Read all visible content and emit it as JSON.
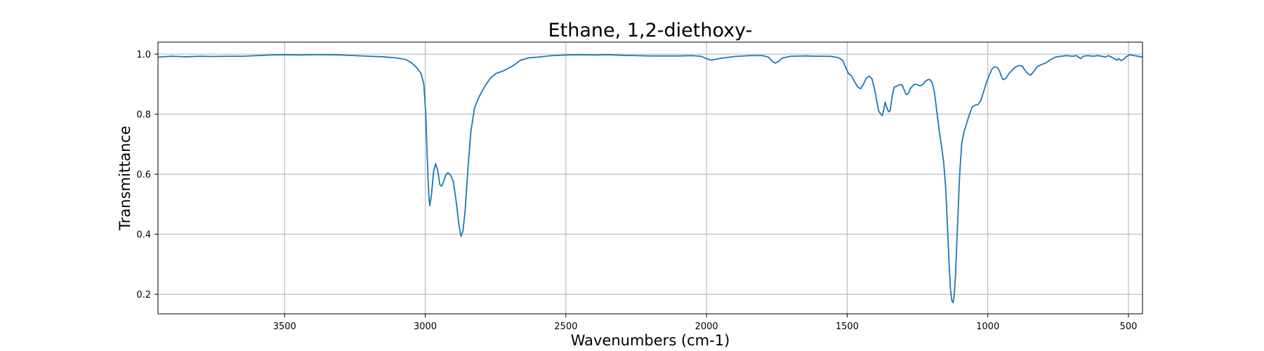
{
  "chart_data": {
    "type": "line",
    "title": "Ethane, 1,2-diethoxy-",
    "xlabel": "Wavenumbers (cm-1)",
    "ylabel": "Transmittance",
    "xlim": [
      3950,
      450
    ],
    "ylim": [
      0.135,
      1.04
    ],
    "x_reversed": true,
    "grid": true,
    "x_ticks": [
      3500,
      3000,
      2500,
      2000,
      1500,
      1000,
      500
    ],
    "y_ticks": [
      0.2,
      0.4,
      0.6,
      0.8,
      1.0
    ],
    "x_tick_labels": [
      "3500",
      "3000",
      "2500",
      "2000",
      "1500",
      "1000",
      "500"
    ],
    "y_tick_labels": [
      "0.2",
      "0.4",
      "0.6",
      "0.8",
      "1.0"
    ],
    "series": [
      {
        "color": "#1f77b4",
        "points": [
          [
            3950,
            0.99
          ],
          [
            3900,
            0.993
          ],
          [
            3850,
            0.991
          ],
          [
            3800,
            0.993
          ],
          [
            3750,
            0.992
          ],
          [
            3700,
            0.993
          ],
          [
            3650,
            0.993
          ],
          [
            3600,
            0.995
          ],
          [
            3550,
            0.997
          ],
          [
            3500,
            0.998
          ],
          [
            3450,
            0.997
          ],
          [
            3400,
            0.998
          ],
          [
            3350,
            0.998
          ],
          [
            3300,
            0.997
          ],
          [
            3250,
            0.995
          ],
          [
            3200,
            0.993
          ],
          [
            3150,
            0.991
          ],
          [
            3100,
            0.987
          ],
          [
            3070,
            0.982
          ],
          [
            3050,
            0.972
          ],
          [
            3030,
            0.955
          ],
          [
            3015,
            0.935
          ],
          [
            3005,
            0.9
          ],
          [
            2998,
            0.8
          ],
          [
            2993,
            0.66
          ],
          [
            2988,
            0.54
          ],
          [
            2984,
            0.495
          ],
          [
            2978,
            0.53
          ],
          [
            2970,
            0.61
          ],
          [
            2963,
            0.635
          ],
          [
            2955,
            0.61
          ],
          [
            2948,
            0.565
          ],
          [
            2942,
            0.56
          ],
          [
            2935,
            0.575
          ],
          [
            2928,
            0.595
          ],
          [
            2920,
            0.605
          ],
          [
            2910,
            0.598
          ],
          [
            2900,
            0.575
          ],
          [
            2890,
            0.51
          ],
          [
            2880,
            0.43
          ],
          [
            2873,
            0.393
          ],
          [
            2866,
            0.41
          ],
          [
            2858,
            0.48
          ],
          [
            2848,
            0.62
          ],
          [
            2838,
            0.74
          ],
          [
            2825,
            0.82
          ],
          [
            2810,
            0.855
          ],
          [
            2790,
            0.89
          ],
          [
            2770,
            0.918
          ],
          [
            2750,
            0.935
          ],
          [
            2720,
            0.945
          ],
          [
            2690,
            0.96
          ],
          [
            2660,
            0.98
          ],
          [
            2630,
            0.988
          ],
          [
            2600,
            0.99
          ],
          [
            2550,
            0.995
          ],
          [
            2500,
            0.997
          ],
          [
            2450,
            0.998
          ],
          [
            2400,
            0.997
          ],
          [
            2350,
            0.998
          ],
          [
            2300,
            0.996
          ],
          [
            2250,
            0.995
          ],
          [
            2200,
            0.994
          ],
          [
            2150,
            0.994
          ],
          [
            2100,
            0.994
          ],
          [
            2050,
            0.995
          ],
          [
            2020,
            0.993
          ],
          [
            2000,
            0.985
          ],
          [
            1985,
            0.98
          ],
          [
            1970,
            0.982
          ],
          [
            1950,
            0.986
          ],
          [
            1900,
            0.992
          ],
          [
            1850,
            0.995
          ],
          [
            1800,
            0.995
          ],
          [
            1780,
            0.99
          ],
          [
            1765,
            0.975
          ],
          [
            1755,
            0.97
          ],
          [
            1745,
            0.975
          ],
          [
            1730,
            0.987
          ],
          [
            1700,
            0.993
          ],
          [
            1650,
            0.994
          ],
          [
            1600,
            0.993
          ],
          [
            1560,
            0.993
          ],
          [
            1530,
            0.988
          ],
          [
            1515,
            0.978
          ],
          [
            1505,
            0.955
          ],
          [
            1495,
            0.935
          ],
          [
            1485,
            0.928
          ],
          [
            1475,
            0.91
          ],
          [
            1462,
            0.89
          ],
          [
            1452,
            0.885
          ],
          [
            1442,
            0.9
          ],
          [
            1432,
            0.92
          ],
          [
            1422,
            0.927
          ],
          [
            1412,
            0.918
          ],
          [
            1403,
            0.885
          ],
          [
            1395,
            0.845
          ],
          [
            1388,
            0.81
          ],
          [
            1380,
            0.8
          ],
          [
            1375,
            0.795
          ],
          [
            1370,
            0.815
          ],
          [
            1365,
            0.84
          ],
          [
            1360,
            0.825
          ],
          [
            1353,
            0.808
          ],
          [
            1347,
            0.812
          ],
          [
            1340,
            0.86
          ],
          [
            1333,
            0.89
          ],
          [
            1325,
            0.893
          ],
          [
            1315,
            0.898
          ],
          [
            1305,
            0.898
          ],
          [
            1297,
            0.88
          ],
          [
            1290,
            0.865
          ],
          [
            1283,
            0.868
          ],
          [
            1275,
            0.885
          ],
          [
            1265,
            0.897
          ],
          [
            1255,
            0.9
          ],
          [
            1245,
            0.895
          ],
          [
            1238,
            0.895
          ],
          [
            1230,
            0.9
          ],
          [
            1222,
            0.91
          ],
          [
            1213,
            0.915
          ],
          [
            1205,
            0.915
          ],
          [
            1198,
            0.905
          ],
          [
            1190,
            0.875
          ],
          [
            1180,
            0.8
          ],
          [
            1172,
            0.74
          ],
          [
            1164,
            0.69
          ],
          [
            1157,
            0.64
          ],
          [
            1150,
            0.56
          ],
          [
            1144,
            0.44
          ],
          [
            1138,
            0.31
          ],
          [
            1133,
            0.22
          ],
          [
            1128,
            0.18
          ],
          [
            1124,
            0.172
          ],
          [
            1120,
            0.19
          ],
          [
            1115,
            0.26
          ],
          [
            1108,
            0.42
          ],
          [
            1100,
            0.6
          ],
          [
            1093,
            0.7
          ],
          [
            1085,
            0.74
          ],
          [
            1075,
            0.77
          ],
          [
            1065,
            0.8
          ],
          [
            1055,
            0.825
          ],
          [
            1045,
            0.83
          ],
          [
            1035,
            0.832
          ],
          [
            1025,
            0.845
          ],
          [
            1015,
            0.875
          ],
          [
            1005,
            0.905
          ],
          [
            995,
            0.93
          ],
          [
            985,
            0.95
          ],
          [
            975,
            0.958
          ],
          [
            965,
            0.955
          ],
          [
            957,
            0.94
          ],
          [
            950,
            0.922
          ],
          [
            945,
            0.915
          ],
          [
            935,
            0.92
          ],
          [
            925,
            0.935
          ],
          [
            912,
            0.948
          ],
          [
            900,
            0.958
          ],
          [
            888,
            0.962
          ],
          [
            878,
            0.96
          ],
          [
            868,
            0.947
          ],
          [
            858,
            0.935
          ],
          [
            848,
            0.93
          ],
          [
            838,
            0.94
          ],
          [
            825,
            0.958
          ],
          [
            810,
            0.965
          ],
          [
            795,
            0.97
          ],
          [
            780,
            0.98
          ],
          [
            760,
            0.99
          ],
          [
            740,
            0.993
          ],
          [
            720,
            0.995
          ],
          [
            700,
            0.993
          ],
          [
            685,
            0.995
          ],
          [
            670,
            0.985
          ],
          [
            660,
            0.993
          ],
          [
            645,
            0.995
          ],
          [
            625,
            0.993
          ],
          [
            610,
            0.995
          ],
          [
            595,
            0.993
          ],
          [
            582,
            0.99
          ],
          [
            572,
            0.995
          ],
          [
            560,
            0.99
          ],
          [
            550,
            0.985
          ],
          [
            540,
            0.98
          ],
          [
            535,
            0.985
          ],
          [
            525,
            0.978
          ],
          [
            515,
            0.985
          ],
          [
            505,
            0.993
          ],
          [
            495,
            0.998
          ],
          [
            480,
            0.995
          ],
          [
            465,
            0.993
          ],
          [
            450,
            0.99
          ]
        ]
      }
    ]
  }
}
